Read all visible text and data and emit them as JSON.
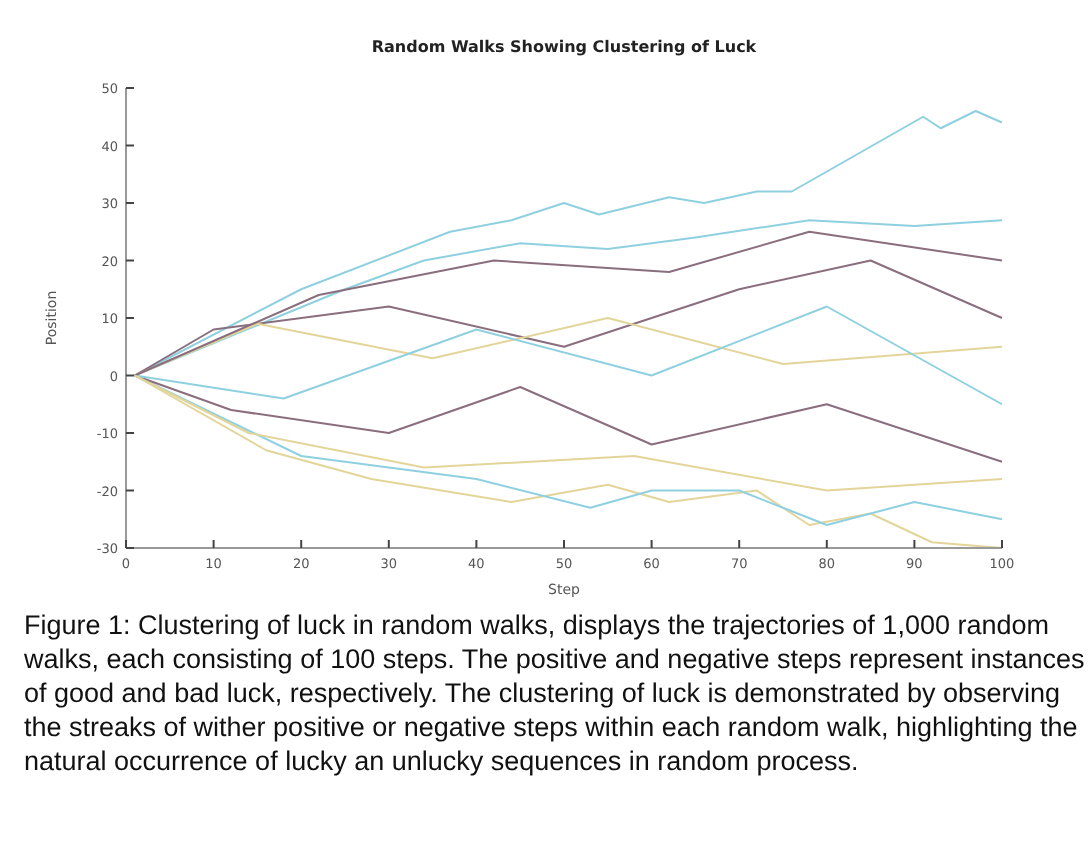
{
  "chart_data": {
    "type": "line",
    "title": "Random Walks Showing Clustering of Luck",
    "xlabel": "Step",
    "ylabel": "Position",
    "xlim": [
      0,
      100
    ],
    "xticks": [
      0,
      10,
      20,
      30,
      40,
      50,
      60,
      70,
      80,
      90,
      100
    ],
    "ylim": [
      -30,
      50
    ],
    "yticks": [
      -30,
      -20,
      -10,
      0,
      10,
      20,
      30,
      40,
      50
    ],
    "grid": false,
    "marker": "none",
    "line_style": "solid",
    "annotations": [
      "Figure 1: Clustering of luck in random walks, displays the trajectories of 1,000 random walks, each consisting of 100 steps. The positive and negative steps represent instances of good and bad luck, respectively. The clustering of luck is demonstrated by observing the streaks of wither positive or negative steps within each random walk, highlighting the natural occurrence of lucky an unlucky sequences in random process."
    ],
    "series": [
      {
        "color": "#8fd0e0",
        "x": [
          1,
          20,
          37,
          44,
          50,
          54,
          62,
          66,
          72,
          76,
          91,
          93,
          97,
          100
        ],
        "values": [
          0,
          15,
          25,
          27,
          30,
          28,
          31,
          30,
          32,
          32,
          45,
          43,
          46,
          44
        ]
      },
      {
        "color": "#8fd0e0",
        "x": [
          1,
          25,
          34,
          45,
          55,
          65,
          78,
          90,
          100
        ],
        "values": [
          0,
          15,
          20,
          23,
          22,
          24,
          27,
          26,
          27
        ]
      },
      {
        "color": "#e3d59a",
        "x": [
          1,
          16,
          28,
          36,
          44,
          55,
          62,
          72,
          78,
          85,
          92,
          100
        ],
        "values": [
          0,
          -13,
          -18,
          -20,
          -22,
          -19,
          -22,
          -20,
          -26,
          -24,
          -29,
          -30
        ]
      },
      {
        "color": "#8fd0e0",
        "x": [
          1,
          20,
          40,
          53,
          60,
          70,
          80,
          90,
          100
        ],
        "values": [
          0,
          -14,
          -18,
          -23,
          -20,
          -20,
          -26,
          -22,
          -25
        ]
      },
      {
        "color": "#8a6e7e",
        "x": [
          1,
          10,
          30,
          50,
          70,
          85,
          100
        ],
        "values": [
          0,
          8,
          12,
          5,
          15,
          20,
          10
        ]
      },
      {
        "color": "#8a6e7e",
        "x": [
          1,
          12,
          30,
          45,
          60,
          80,
          100
        ],
        "values": [
          0,
          -6,
          -10,
          -2,
          -12,
          -5,
          -15
        ]
      },
      {
        "color": "#e3d59a",
        "x": [
          1,
          15,
          35,
          55,
          75,
          100
        ],
        "values": [
          0,
          9,
          3,
          10,
          2,
          5
        ]
      },
      {
        "color": "#8fd0e0",
        "x": [
          1,
          18,
          40,
          60,
          80,
          100
        ],
        "values": [
          0,
          -4,
          8,
          0,
          12,
          -5
        ]
      },
      {
        "color": "#8a6e7e",
        "x": [
          1,
          22,
          42,
          62,
          78,
          100
        ],
        "values": [
          0,
          14,
          20,
          18,
          25,
          20
        ]
      },
      {
        "color": "#e3d59a",
        "x": [
          1,
          14,
          34,
          58,
          80,
          100
        ],
        "values": [
          0,
          -10,
          -16,
          -14,
          -20,
          -18
        ]
      }
    ]
  }
}
